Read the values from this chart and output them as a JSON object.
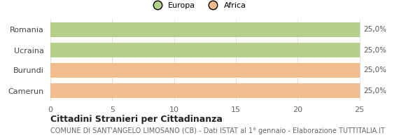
{
  "categories": [
    "Romania",
    "Ucraina",
    "Burundi",
    "Camerun"
  ],
  "values": [
    25.0,
    25.0,
    25.0,
    25.0
  ],
  "bar_colors": [
    "#b5d08a",
    "#b5d08a",
    "#f2bc8c",
    "#f2bc8c"
  ],
  "bar_labels": [
    "25,0%",
    "25,0%",
    "25,0%",
    "25,0%"
  ],
  "legend_labels": [
    "Europa",
    "Africa"
  ],
  "legend_colors": [
    "#b5d08a",
    "#f2bc8c"
  ],
  "xlim": [
    0,
    25
  ],
  "xticks": [
    0,
    5,
    10,
    15,
    20,
    25
  ],
  "title": "Cittadini Stranieri per Cittadinanza",
  "subtitle": "COMUNE DI SANT'ANGELO LIMOSANO (CB) - Dati ISTAT al 1° gennaio - Elaborazione TUTTITALIA.IT",
  "background_color": "#ffffff",
  "bar_height": 0.75,
  "title_fontsize": 9,
  "subtitle_fontsize": 7,
  "tick_fontsize": 8,
  "label_fontsize": 7.5
}
